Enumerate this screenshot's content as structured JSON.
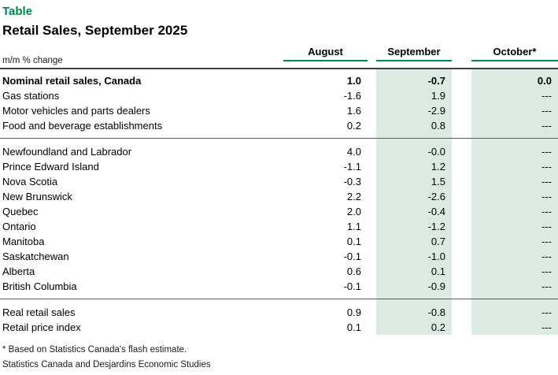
{
  "chart_data": {
    "type": "table",
    "kicker": "Table",
    "title": "Retail Sales, September 2025",
    "unit_label": "m/m % change",
    "columns": [
      "August",
      "September",
      "October*"
    ],
    "shaded_columns": [
      "September",
      "October*"
    ],
    "sections": [
      {
        "name": "national-and-sectors",
        "rows": [
          {
            "label": "Nominal retail sales, Canada",
            "bold": true,
            "values": [
              "1.0",
              "-0.7",
              "0.0"
            ]
          },
          {
            "label": "Gas stations",
            "bold": false,
            "values": [
              "-1.6",
              "1.9",
              "---"
            ]
          },
          {
            "label": "Motor vehicles and parts dealers",
            "bold": false,
            "values": [
              "1.6",
              "-2.9",
              "---"
            ]
          },
          {
            "label": "Food and beverage establishments",
            "bold": false,
            "values": [
              "0.2",
              "0.8",
              "---"
            ]
          }
        ]
      },
      {
        "name": "provinces",
        "rows": [
          {
            "label": "Newfoundland and Labrador",
            "bold": false,
            "values": [
              "4.0",
              "-0.0",
              "---"
            ]
          },
          {
            "label": "Prince Edward Island",
            "bold": false,
            "values": [
              "-1.1",
              "1.2",
              "---"
            ]
          },
          {
            "label": "Nova Scotia",
            "bold": false,
            "values": [
              "-0.3",
              "1.5",
              "---"
            ]
          },
          {
            "label": "New Brunswick",
            "bold": false,
            "values": [
              "2.2",
              "-2.6",
              "---"
            ]
          },
          {
            "label": "Quebec",
            "bold": false,
            "values": [
              "2.0",
              "-0.4",
              "---"
            ]
          },
          {
            "label": "Ontario",
            "bold": false,
            "values": [
              "1.1",
              "-1.2",
              "---"
            ]
          },
          {
            "label": "Manitoba",
            "bold": false,
            "values": [
              "0.1",
              "0.7",
              "---"
            ]
          },
          {
            "label": "Saskatchewan",
            "bold": false,
            "values": [
              "-0.1",
              "-1.0",
              "---"
            ]
          },
          {
            "label": "Alberta",
            "bold": false,
            "values": [
              "0.6",
              "0.1",
              "---"
            ]
          },
          {
            "label": "British Columbia",
            "bold": false,
            "values": [
              "-0.1",
              "-0.9",
              "---"
            ]
          }
        ]
      },
      {
        "name": "aggregates",
        "rows": [
          {
            "label": "Real retail sales",
            "bold": false,
            "values": [
              "0.9",
              "-0.8",
              "---"
            ]
          },
          {
            "label": "Retail price index",
            "bold": false,
            "values": [
              "0.1",
              "0.2",
              "---"
            ]
          }
        ]
      }
    ],
    "footnotes": [
      "* Based on Statistics Canada's flash estimate.",
      "Statistics Canada and Desjardins Economic Studies"
    ]
  },
  "colors": {
    "accent_green": "#00874D",
    "shade_green": "#DCEBE1",
    "rule_dark": "#404040",
    "divider_gray": "#5a5a5a"
  }
}
